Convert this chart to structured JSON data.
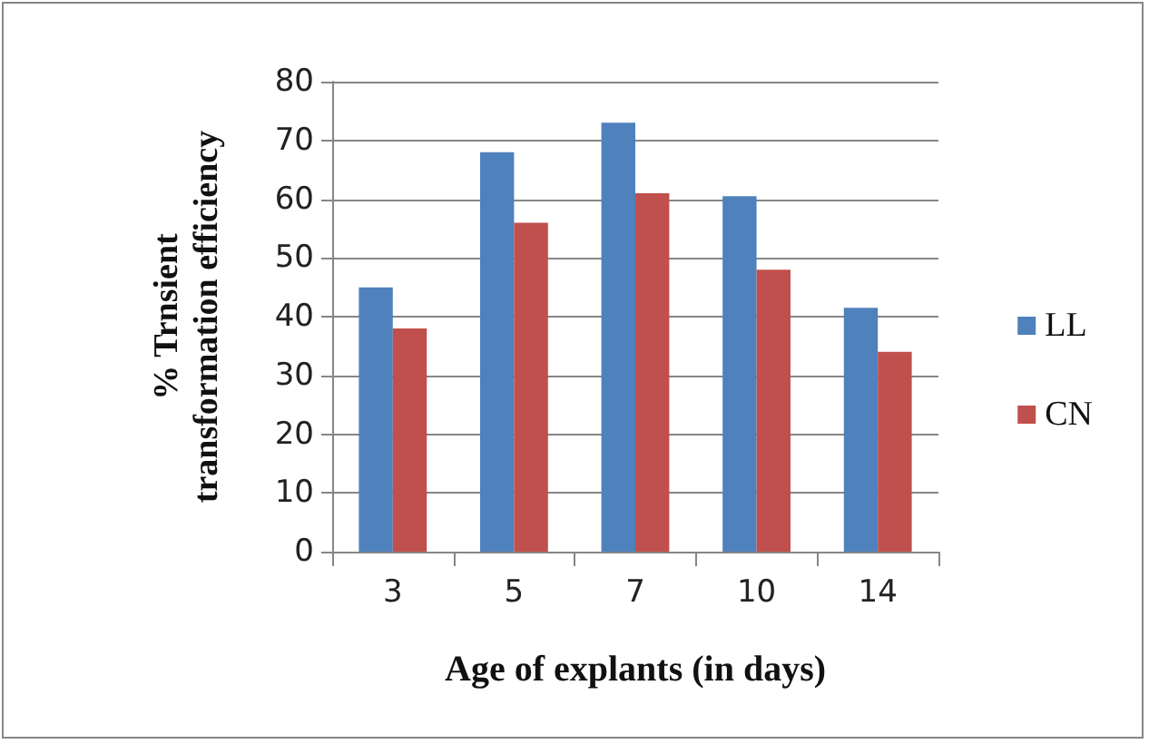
{
  "chart_data": {
    "type": "bar",
    "xlabel": "Age of explants (in days)",
    "ylabel": "% Trnsient\ntransformation efficiency",
    "categories": [
      "3",
      "5",
      "7",
      "10",
      "14"
    ],
    "series": [
      {
        "name": "LL",
        "color": "#4f81bd",
        "values": [
          45,
          68,
          73,
          60.5,
          41.5
        ]
      },
      {
        "name": "CN",
        "color": "#c0504d",
        "values": [
          38,
          56,
          61,
          48,
          34
        ]
      }
    ],
    "ylim": [
      0,
      80
    ],
    "yticks": [
      0,
      10,
      20,
      30,
      40,
      50,
      60,
      70,
      80
    ],
    "grid": "y",
    "legend": "right"
  }
}
